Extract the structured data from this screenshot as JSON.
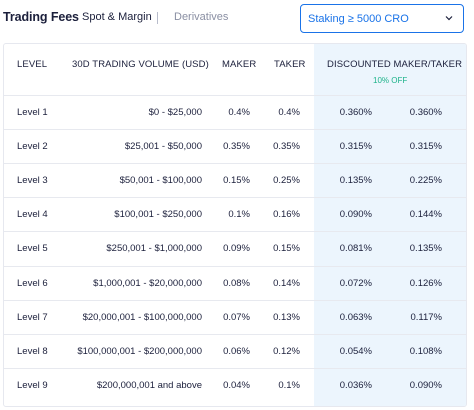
{
  "header": {
    "title": "Trading Fees",
    "tabs": [
      {
        "label": "Spot & Margin",
        "active": true
      },
      {
        "label": "Derivatives",
        "active": false
      }
    ],
    "select": {
      "value": "Staking ≥ 5000 CRO"
    }
  },
  "table": {
    "columns": {
      "level": "LEVEL",
      "volume": "30D TRADING VOLUME (USD)",
      "maker": "MAKER",
      "taker": "TAKER",
      "discounted": "DISCOUNTED MAKER/TAKER",
      "discount_note": "10% OFF"
    },
    "rows": [
      {
        "level": "Level 1",
        "volume": "$0 - $25,000",
        "maker": "0.4%",
        "taker": "0.4%",
        "d_maker": "0.360%",
        "d_taker": "0.360%"
      },
      {
        "level": "Level 2",
        "volume": "$25,001 - $50,000",
        "maker": "0.35%",
        "taker": "0.35%",
        "d_maker": "0.315%",
        "d_taker": "0.315%"
      },
      {
        "level": "Level 3",
        "volume": "$50,001 - $100,000",
        "maker": "0.15%",
        "taker": "0.25%",
        "d_maker": "0.135%",
        "d_taker": "0.225%"
      },
      {
        "level": "Level 4",
        "volume": "$100,001 - $250,000",
        "maker": "0.1%",
        "taker": "0.16%",
        "d_maker": "0.090%",
        "d_taker": "0.144%"
      },
      {
        "level": "Level 5",
        "volume": "$250,001 - $1,000,000",
        "maker": "0.09%",
        "taker": "0.15%",
        "d_maker": "0.081%",
        "d_taker": "0.135%"
      },
      {
        "level": "Level 6",
        "volume": "$1,000,001 - $20,000,000",
        "maker": "0.08%",
        "taker": "0.14%",
        "d_maker": "0.072%",
        "d_taker": "0.126%"
      },
      {
        "level": "Level 7",
        "volume": "$20,000,001 - $100,000,000",
        "maker": "0.07%",
        "taker": "0.13%",
        "d_maker": "0.063%",
        "d_taker": "0.117%"
      },
      {
        "level": "Level 8",
        "volume": "$100,000,001 - $200,000,000",
        "maker": "0.06%",
        "taker": "0.12%",
        "d_maker": "0.054%",
        "d_taker": "0.108%"
      },
      {
        "level": "Level 9",
        "volume": "$200,000,001 and above",
        "maker": "0.04%",
        "taker": "0.1%",
        "d_maker": "0.036%",
        "d_taker": "0.090%"
      }
    ]
  },
  "colors": {
    "accent": "#1a73e8",
    "discount_green": "#1db38a",
    "highlight_bg": "#ecf5fd"
  },
  "icons": {
    "select_chevron": "chevron-down-icon"
  }
}
